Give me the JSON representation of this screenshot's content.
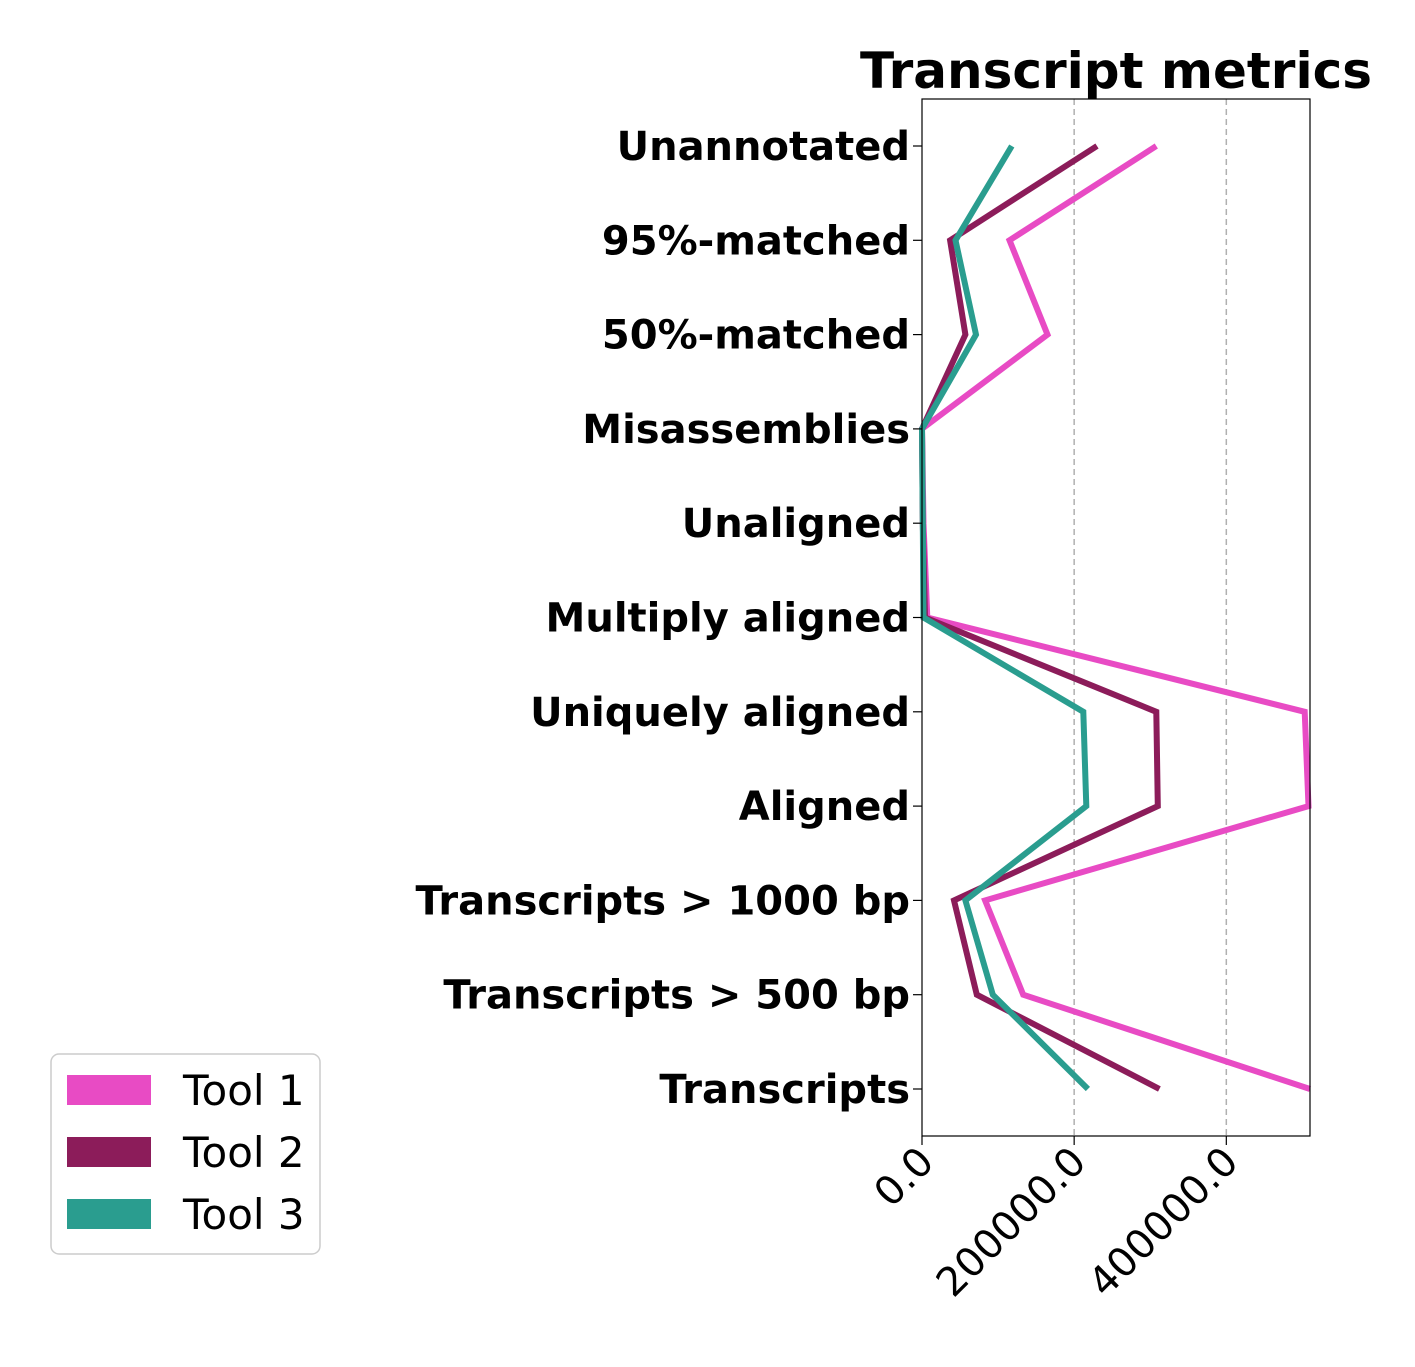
{
  "chart_data": {
    "type": "line",
    "orientation": "horizontal",
    "title": "Transcript metrics",
    "xlabel": "",
    "ylabel": "",
    "xlim": [
      0,
      510000
    ],
    "xticks": [
      0,
      200000,
      400000
    ],
    "xtick_labels": [
      "0.0",
      "200000.0",
      "400000.0"
    ],
    "grid": "x-dashed",
    "legend_position": "lower-left",
    "categories": [
      "Transcripts",
      "Transcripts > 500 bp",
      "Transcripts > 1000 bp",
      "Aligned",
      "Uniquely aligned",
      "Multiply aligned",
      "Unaligned",
      "Misassemblies",
      "50%-matched",
      "95%-matched",
      "Unannotated"
    ],
    "series": [
      {
        "name": "Tool 1",
        "color": "#e84bc4",
        "values": [
          510000,
          133000,
          83000,
          508000,
          503000,
          7000,
          2000,
          0,
          165000,
          115000,
          308000
        ]
      },
      {
        "name": "Tool 2",
        "color": "#8c1c5a",
        "values": [
          312000,
          72000,
          42000,
          310000,
          308000,
          4000,
          1000,
          0,
          57000,
          37000,
          230000
        ]
      },
      {
        "name": "Tool 3",
        "color": "#2a9d8f",
        "values": [
          218000,
          93000,
          57000,
          216000,
          212000,
          2000,
          1000,
          0,
          71000,
          44000,
          118000
        ]
      }
    ]
  }
}
